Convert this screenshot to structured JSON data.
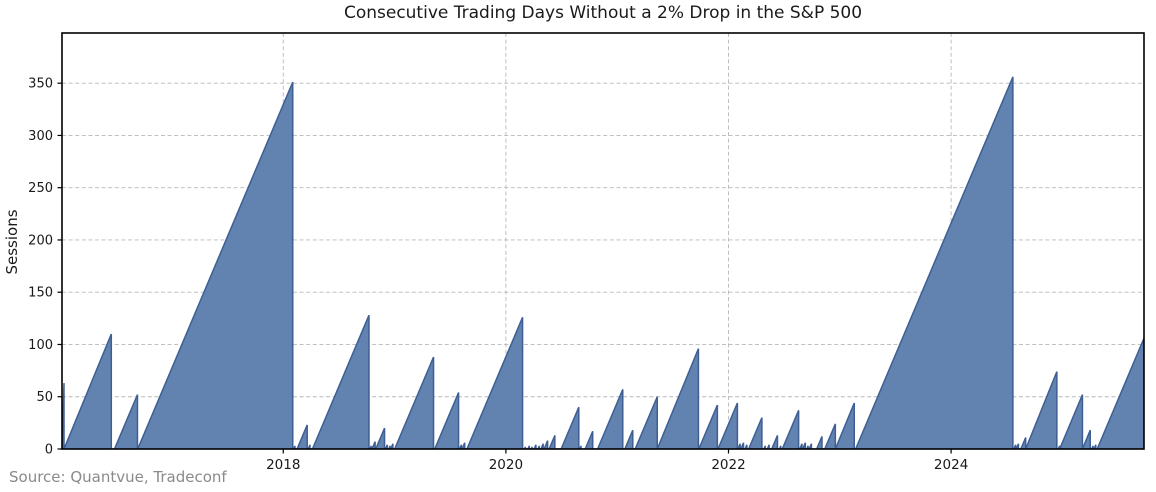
{
  "chart_data": {
    "type": "area",
    "title": "Consecutive Trading Days Without a 2% Drop in the S&P 500",
    "ylabel": "Sessions",
    "source": "Source: Quantvue, Tradeconf",
    "x_tick_labels": [
      "2018",
      "2020",
      "2022",
      "2024"
    ],
    "x_tick_years": [
      2018,
      2020,
      2022,
      2024
    ],
    "y_ticks": [
      0,
      50,
      100,
      150,
      200,
      250,
      300,
      350
    ],
    "xlim": [
      2016.012,
      2025.733
    ],
    "ylim": [
      0,
      398
    ],
    "sessions_per_year": 252,
    "grid": true,
    "legend": "none",
    "colors": {
      "fill": "#6282b0",
      "edge": "#3d5f94",
      "grid": "#b8b8b8",
      "spine": "#000000",
      "tick_text": "#1a1a1a",
      "source_text": "#8a8a8a"
    },
    "teeth_note": "sawtooth streaks: x = streak end (decimal year), v = peak length in sessions; each streak rises at 252 sessions/year then resets to 0",
    "teeth": [
      {
        "x": 2016.03,
        "v": 63
      },
      {
        "x": 2016.455,
        "v": 110
      },
      {
        "x": 2016.69,
        "v": 52
      },
      {
        "x": 2018.085,
        "v": 351
      },
      {
        "x": 2018.105,
        "v": 3
      },
      {
        "x": 2018.215,
        "v": 23
      },
      {
        "x": 2018.24,
        "v": 4
      },
      {
        "x": 2018.77,
        "v": 128
      },
      {
        "x": 2018.79,
        "v": 3
      },
      {
        "x": 2018.825,
        "v": 7
      },
      {
        "x": 2018.91,
        "v": 20
      },
      {
        "x": 2018.935,
        "v": 4
      },
      {
        "x": 2018.96,
        "v": 3
      },
      {
        "x": 2018.985,
        "v": 5
      },
      {
        "x": 2019.35,
        "v": 88
      },
      {
        "x": 2019.575,
        "v": 54
      },
      {
        "x": 2019.6,
        "v": 4
      },
      {
        "x": 2019.63,
        "v": 6
      },
      {
        "x": 2020.15,
        "v": 126
      },
      {
        "x": 2020.175,
        "v": 2
      },
      {
        "x": 2020.21,
        "v": 3
      },
      {
        "x": 2020.235,
        "v": 2
      },
      {
        "x": 2020.27,
        "v": 4
      },
      {
        "x": 2020.3,
        "v": 3
      },
      {
        "x": 2020.335,
        "v": 5
      },
      {
        "x": 2020.375,
        "v": 8
      },
      {
        "x": 2020.44,
        "v": 13
      },
      {
        "x": 2020.655,
        "v": 40
      },
      {
        "x": 2020.675,
        "v": 3
      },
      {
        "x": 2020.78,
        "v": 17
      },
      {
        "x": 2021.05,
        "v": 57
      },
      {
        "x": 2021.14,
        "v": 18
      },
      {
        "x": 2021.36,
        "v": 50
      },
      {
        "x": 2021.73,
        "v": 96
      },
      {
        "x": 2021.9,
        "v": 42
      },
      {
        "x": 2022.08,
        "v": 44
      },
      {
        "x": 2022.105,
        "v": 5
      },
      {
        "x": 2022.135,
        "v": 6
      },
      {
        "x": 2022.165,
        "v": 4
      },
      {
        "x": 2022.3,
        "v": 30
      },
      {
        "x": 2022.33,
        "v": 3
      },
      {
        "x": 2022.365,
        "v": 4
      },
      {
        "x": 2022.44,
        "v": 13
      },
      {
        "x": 2022.47,
        "v": 3
      },
      {
        "x": 2022.63,
        "v": 37
      },
      {
        "x": 2022.66,
        "v": 5
      },
      {
        "x": 2022.69,
        "v": 6
      },
      {
        "x": 2022.715,
        "v": 3
      },
      {
        "x": 2022.745,
        "v": 5
      },
      {
        "x": 2022.84,
        "v": 12
      },
      {
        "x": 2022.96,
        "v": 24
      },
      {
        "x": 2023.13,
        "v": 44
      },
      {
        "x": 2024.555,
        "v": 356
      },
      {
        "x": 2024.58,
        "v": 4
      },
      {
        "x": 2024.605,
        "v": 5
      },
      {
        "x": 2024.67,
        "v": 11
      },
      {
        "x": 2024.95,
        "v": 74
      },
      {
        "x": 2024.975,
        "v": 3
      },
      {
        "x": 2025.18,
        "v": 52
      },
      {
        "x": 2025.25,
        "v": 18
      },
      {
        "x": 2025.275,
        "v": 3
      },
      {
        "x": 2025.3,
        "v": 4
      },
      {
        "x": 2025.733,
        "v": 106
      }
    ]
  }
}
